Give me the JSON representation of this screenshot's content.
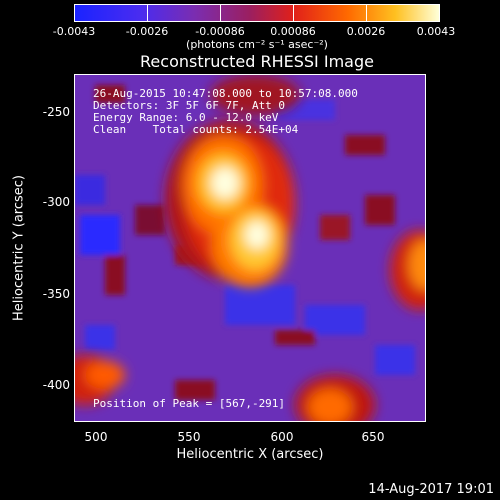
{
  "colorbar": {
    "tick_labels": [
      "-0.0043",
      "-0.0026",
      "-0.00086",
      "0.00086",
      "0.0026",
      "0.0043"
    ],
    "units": "(photons cm⁻² s⁻¹ asec⁻²)",
    "colors": [
      "#1a23ff",
      "#5a2fd8",
      "#7b2db0",
      "#b0182a",
      "#ff4a00",
      "#ffb000",
      "#ffffcc"
    ]
  },
  "title": "Reconstructed RHESSI Image",
  "annotations": {
    "time_range": "26-Aug-2015 10:47:08.000 to 10:57:08.000",
    "detectors": "Detectors: 3F 5F 6F 7F, Att 0",
    "energy_range": "Energy Range: 6.0 - 12.0 keV",
    "clean_counts": "Clean    Total counts: 2.54E+04",
    "peak_position": "Position of Peak = [567,-291]"
  },
  "axes": {
    "xlabel": "Heliocentric X (arcsec)",
    "ylabel": "Heliocentric Y (arcsec)",
    "x_ticks": [
      "500",
      "550",
      "600",
      "650"
    ],
    "y_ticks": [
      "-250",
      "-300",
      "-350",
      "-400"
    ],
    "xlim": [
      488,
      680
    ],
    "ylim": [
      -422,
      -232
    ]
  },
  "timestamp": "14-Aug-2017 19:01"
}
